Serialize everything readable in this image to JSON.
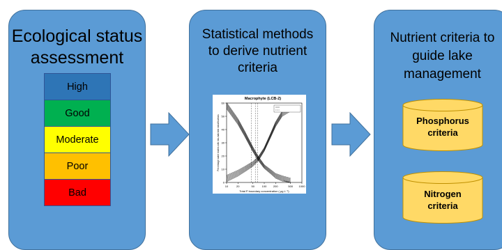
{
  "panels": {
    "status": {
      "title_line1": "Ecological status",
      "title_line2": "assessment",
      "classes": [
        {
          "label": "High",
          "color": "#2e75b6"
        },
        {
          "label": "Good",
          "color": "#00b050"
        },
        {
          "label": "Moderate",
          "color": "#ffff00"
        },
        {
          "label": "Poor",
          "color": "#ffc000"
        },
        {
          "label": "Bad",
          "color": "#ff0000"
        }
      ]
    },
    "methods": {
      "title_line1": "Statistical methods",
      "title_line2": "to derive nutrient",
      "title_line3": "criteria",
      "chart_title": "Macrophyte (LCB-2)",
      "chart_x_label": "Total P boundary concentration ( µg L⁻¹)",
      "chart_y_label": "Percentage water bodies with mis-matched classifications"
    },
    "criteria": {
      "title_line1": "Nutrient criteria to",
      "title_line2": "guide lake",
      "title_line3": "management",
      "phosphorus_line1": "Phosphorus",
      "phosphorus_line2": "criteria",
      "nitrogen_line1": "Nitrogen",
      "nitrogen_line2": "criteria"
    }
  },
  "colors": {
    "panel": "#5b9bd5",
    "panel_border": "#41719c",
    "cylinder": "#ffd966",
    "cylinder_border": "#bf9000"
  },
  "chart_data": {
    "type": "line",
    "title": "Macrophyte (LCB-2)",
    "xlabel": "Total P boundary concentration ( µg L⁻¹)",
    "ylabel": "Percentage water bodies with mis-matched classifications",
    "x_scale": "log",
    "x_ticks": [
      10,
      20,
      50,
      100,
      200,
      500,
      1000
    ],
    "y_ticks": [
      0,
      10,
      20,
      30,
      40,
      50,
      60
    ],
    "xlim": [
      10,
      1000
    ],
    "ylim": [
      0,
      60
    ],
    "series": [
      {
        "x": [
          10,
          20,
          30,
          50,
          70,
          100,
          150,
          200,
          300,
          500
        ],
        "y": [
          58,
          46,
          37,
          25,
          18,
          12,
          8,
          5,
          3,
          1
        ]
      },
      {
        "x": [
          10,
          20,
          30,
          50,
          70,
          100,
          150,
          200,
          300,
          500
        ],
        "y": [
          3,
          7,
          10,
          14,
          18,
          25,
          36,
          44,
          52,
          56
        ]
      }
    ]
  }
}
